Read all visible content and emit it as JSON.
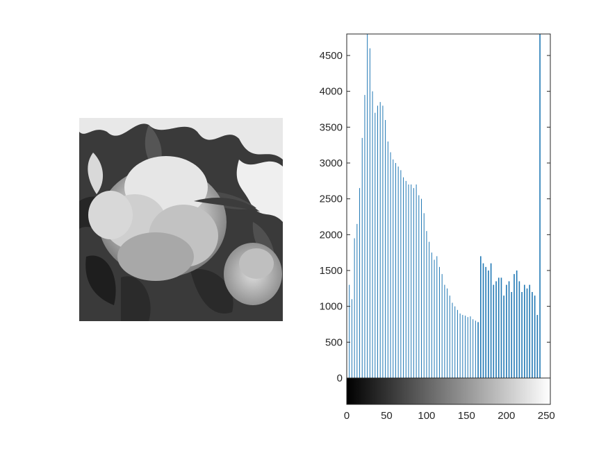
{
  "figure": {
    "image_panel": {
      "description_icon": "grayscale-flower-photo-icon"
    },
    "colors": {
      "bar": "#1f77b4",
      "axis": "#262626",
      "background": "#ffffff"
    }
  },
  "chart_data": {
    "type": "bar",
    "title": "",
    "xlabel": "",
    "ylabel": "",
    "xlim": [
      0,
      255
    ],
    "ylim": [
      0,
      4800
    ],
    "x_ticks": [
      0,
      50,
      100,
      150,
      200,
      250
    ],
    "y_ticks": [
      0,
      500,
      1000,
      1500,
      2000,
      2500,
      3000,
      3500,
      4000,
      4500
    ],
    "x_tick_labels": [
      "0",
      "50",
      "100",
      "150",
      "200",
      "250"
    ],
    "y_tick_labels": [
      "0",
      "500",
      "1000",
      "1500",
      "2000",
      "2500",
      "3000",
      "3500",
      "4000",
      "4500"
    ],
    "colorbar": "grayscale 0-255",
    "grid": false,
    "series": [
      {
        "values": [
          850,
          1300,
          1100,
          1950,
          2150,
          2650,
          3350,
          3950,
          4800,
          4600,
          4000,
          3700,
          3800,
          3850,
          3800,
          3600,
          3300,
          3150,
          3050,
          3000,
          2950,
          2900,
          2800,
          2750,
          2700,
          2700,
          2650,
          2700,
          2550,
          2500,
          2300,
          2050,
          1900,
          1750,
          1650,
          1700,
          1550,
          1450,
          1300,
          1250,
          1150,
          1050,
          1000,
          950,
          900,
          880,
          870,
          850,
          860,
          820,
          800,
          780,
          1700,
          1600,
          1550,
          1500,
          1600,
          1300,
          1350,
          1400,
          1400,
          1150,
          1300,
          1350,
          1200,
          1450,
          1500,
          1350,
          1200,
          1300,
          1250,
          1300,
          1200,
          1150,
          880,
          4800
        ]
      }
    ]
  }
}
